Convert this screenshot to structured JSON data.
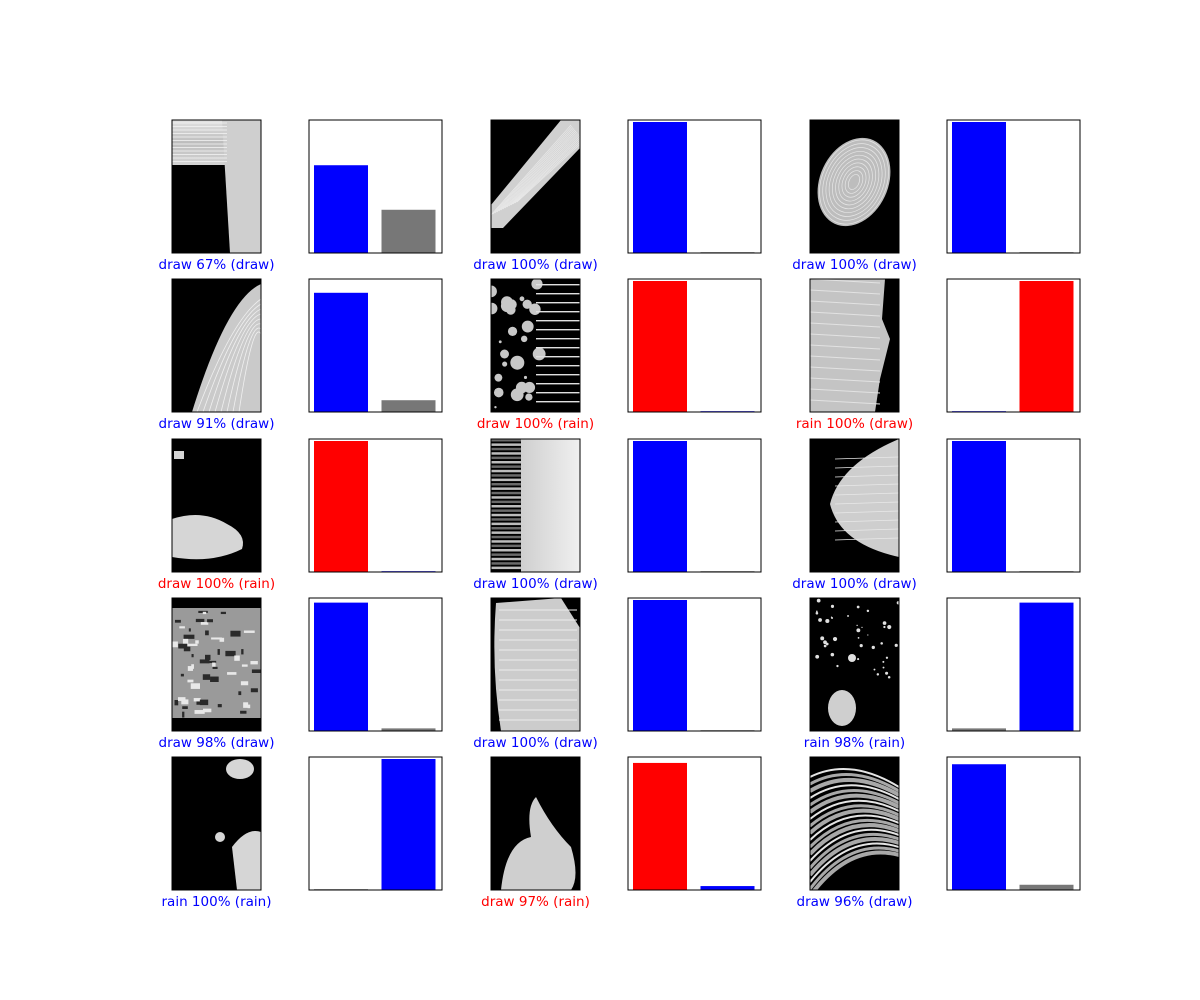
{
  "classes": [
    "draw",
    "rain"
  ],
  "colors": {
    "correct": "#0000ff",
    "wrong": "#ff0000",
    "other": "#777777",
    "frame": "#000000"
  },
  "chart_data": {
    "type": "bar",
    "layout": "grid of 5 rows x 3 columns; each cell = grayscale texture image + class-probability bar chart",
    "ylim": [
      0,
      1
    ],
    "categories": [
      "draw",
      "rain"
    ],
    "grid": false,
    "samples": [
      {
        "caption": "draw 67% (draw)",
        "predicted": "draw",
        "true_label": "draw",
        "correct": true,
        "probs": [
          0.67,
          0.33
        ],
        "image": "blank-streaks"
      },
      {
        "caption": "draw 100% (draw)",
        "predicted": "draw",
        "true_label": "draw",
        "correct": true,
        "probs": [
          1.0,
          0.0
        ],
        "image": "diagonal-streak"
      },
      {
        "caption": "draw 100% (draw)",
        "predicted": "draw",
        "true_label": "draw",
        "correct": true,
        "probs": [
          1.0,
          0.0
        ],
        "image": "oval-blob"
      },
      {
        "caption": "draw 91% (draw)",
        "predicted": "draw",
        "true_label": "draw",
        "correct": true,
        "probs": [
          0.91,
          0.09
        ],
        "image": "arc-edge"
      },
      {
        "caption": "draw 100% (rain)",
        "predicted": "draw",
        "true_label": "rain",
        "correct": false,
        "probs": [
          1.0,
          0.0
        ],
        "image": "speckles"
      },
      {
        "caption": "rain 100% (draw)",
        "predicted": "rain",
        "true_label": "draw",
        "correct": false,
        "probs": [
          0.0,
          1.0
        ],
        "image": "gray-mass"
      },
      {
        "caption": "draw 100% (rain)",
        "predicted": "draw",
        "true_label": "rain",
        "correct": false,
        "probs": [
          1.0,
          0.0
        ],
        "image": "bottom-blob"
      },
      {
        "caption": "draw 100% (draw)",
        "predicted": "draw",
        "true_label": "draw",
        "correct": true,
        "probs": [
          1.0,
          0.0
        ],
        "image": "bars"
      },
      {
        "caption": "draw 100% (draw)",
        "predicted": "draw",
        "true_label": "draw",
        "correct": true,
        "probs": [
          1.0,
          0.0
        ],
        "image": "right-half"
      },
      {
        "caption": "draw 98% (draw)",
        "predicted": "draw",
        "true_label": "draw",
        "correct": true,
        "probs": [
          0.98,
          0.02
        ],
        "image": "busy-texture"
      },
      {
        "caption": "draw 100% (draw)",
        "predicted": "draw",
        "true_label": "draw",
        "correct": true,
        "probs": [
          1.0,
          0.0
        ],
        "image": "light-fill"
      },
      {
        "caption": "rain 98% (rain)",
        "predicted": "rain",
        "true_label": "rain",
        "correct": true,
        "probs": [
          0.02,
          0.98
        ],
        "image": "dots"
      },
      {
        "caption": "rain 100% (rain)",
        "predicted": "rain",
        "true_label": "rain",
        "correct": true,
        "probs": [
          0.0,
          1.0
        ],
        "image": "edge-blobs"
      },
      {
        "caption": "draw 97% (rain)",
        "predicted": "draw",
        "true_label": "rain",
        "correct": false,
        "probs": [
          0.97,
          0.03
        ],
        "image": "splash"
      },
      {
        "caption": "draw 96% (draw)",
        "predicted": "draw",
        "true_label": "draw",
        "correct": true,
        "probs": [
          0.96,
          0.04
        ],
        "image": "strokes"
      }
    ]
  }
}
